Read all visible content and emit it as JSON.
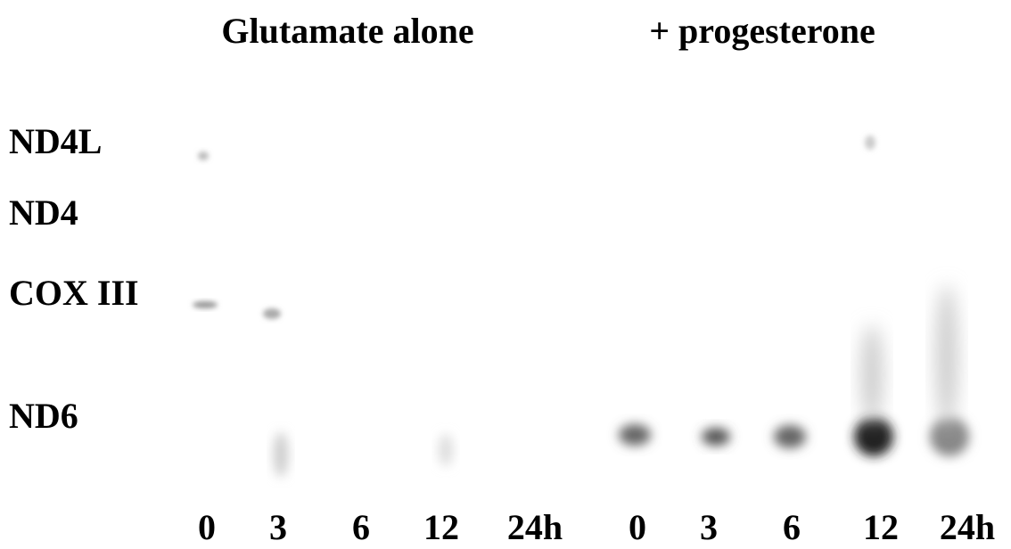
{
  "groups": [
    "Glutamate alone",
    "+ progesterone"
  ],
  "rows": [
    "ND4L",
    "ND4",
    "COX III",
    "ND6"
  ],
  "lanes": [
    "0",
    "3",
    "6",
    "12",
    "24h",
    "0",
    "3",
    "6",
    "12",
    "24h"
  ]
}
